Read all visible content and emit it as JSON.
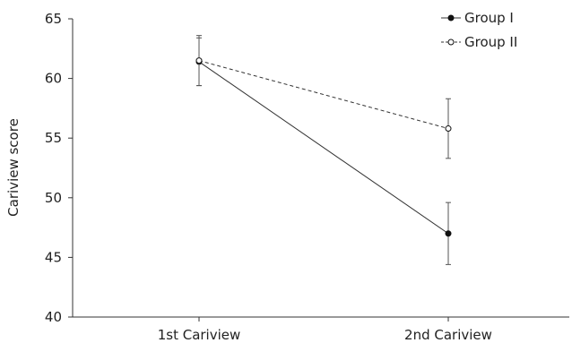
{
  "chart_data": {
    "type": "line",
    "title": "",
    "xlabel": "",
    "ylabel": "Cariview score",
    "categories": [
      "1st Cariview",
      "2nd Cariview"
    ],
    "ylim": [
      40,
      65
    ],
    "yticks": [
      40,
      45,
      50,
      55,
      60,
      65
    ],
    "grid": false,
    "legend_position": "top-right",
    "series": [
      {
        "name": "Group I",
        "values": [
          61.4,
          47.0
        ],
        "errors": [
          2.0,
          2.6
        ],
        "line_style": "solid",
        "marker": "filled-circle",
        "color": "#333333"
      },
      {
        "name": "Group II",
        "values": [
          61.5,
          55.8
        ],
        "errors": [
          2.1,
          2.5
        ],
        "line_style": "dashed",
        "marker": "open-circle",
        "color": "#333333"
      }
    ]
  }
}
